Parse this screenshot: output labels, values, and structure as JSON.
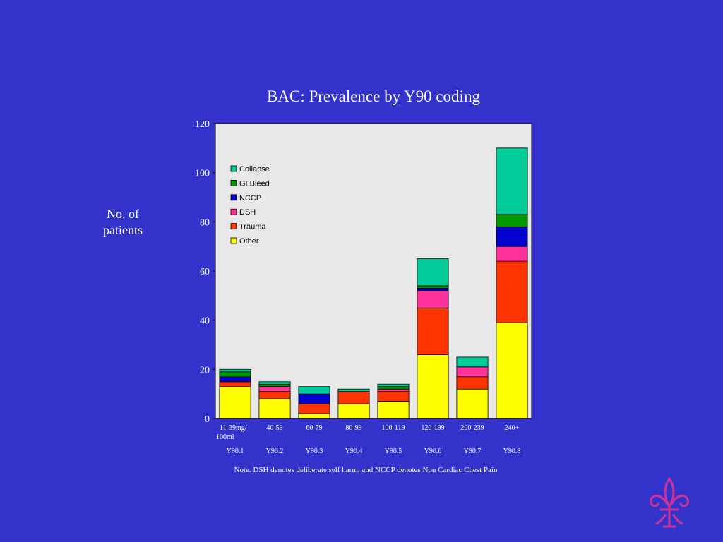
{
  "slide": {
    "title": "BAC: Prevalence by Y90 coding",
    "ylabel_line1": "No. of",
    "ylabel_line2": "patients",
    "note": "Note.  DSH denotes deliberate self harm, and NCCP denotes Non Cardiac Chest Pain",
    "logo": "fleur-de-lis-icon"
  },
  "colors": {
    "background": "#3333cc",
    "plot_area": "#e8e8e8"
  },
  "chart_data": {
    "type": "bar",
    "stacked": true,
    "title": "BAC: Prevalence by Y90 coding",
    "ylabel": "No. of patients",
    "xlabel": "",
    "ylim": [
      0,
      120
    ],
    "yticks": [
      0,
      20,
      40,
      60,
      80,
      100,
      120
    ],
    "grid": false,
    "legend_position": "top-left",
    "categories": [
      "11-39mg/ 100ml",
      "40-59",
      "60-79",
      "80-99",
      "100-119",
      "120-199",
      "200-239",
      "240+"
    ],
    "category_lines": [
      [
        "11-39mg/",
        "100ml"
      ],
      [
        "40-59"
      ],
      [
        "60-79"
      ],
      [
        "80-99"
      ],
      [
        "100-119"
      ],
      [
        "120-199"
      ],
      [
        "200-239"
      ],
      [
        "240+"
      ]
    ],
    "codes": [
      "Y90.1",
      "Y90.2",
      "Y90.3",
      "Y90.4",
      "Y90.5",
      "Y90.6",
      "Y90.7",
      "Y90.8"
    ],
    "series": [
      {
        "name": "Other",
        "color": "#ffff00",
        "values": [
          13,
          8,
          2,
          6,
          7,
          26,
          12,
          39
        ]
      },
      {
        "name": "Trauma",
        "color": "#ff3300",
        "values": [
          2,
          3,
          4,
          5,
          4,
          19,
          5,
          25
        ]
      },
      {
        "name": "DSH",
        "color": "#ff3399",
        "values": [
          0,
          2,
          0,
          0,
          1,
          7,
          4,
          6
        ]
      },
      {
        "name": "NCCP",
        "color": "#0000cc",
        "values": [
          2,
          0,
          4,
          0,
          0,
          1,
          0,
          8
        ]
      },
      {
        "name": "GI Bleed",
        "color": "#009900",
        "values": [
          2,
          1,
          0,
          0,
          1,
          1,
          0,
          5
        ]
      },
      {
        "name": "Collapse",
        "color": "#00cc99",
        "values": [
          1,
          1,
          3,
          1,
          1,
          11,
          4,
          27
        ]
      }
    ],
    "legend_order": [
      "Collapse",
      "GI Bleed",
      "NCCP",
      "DSH",
      "Trauma",
      "Other"
    ]
  }
}
